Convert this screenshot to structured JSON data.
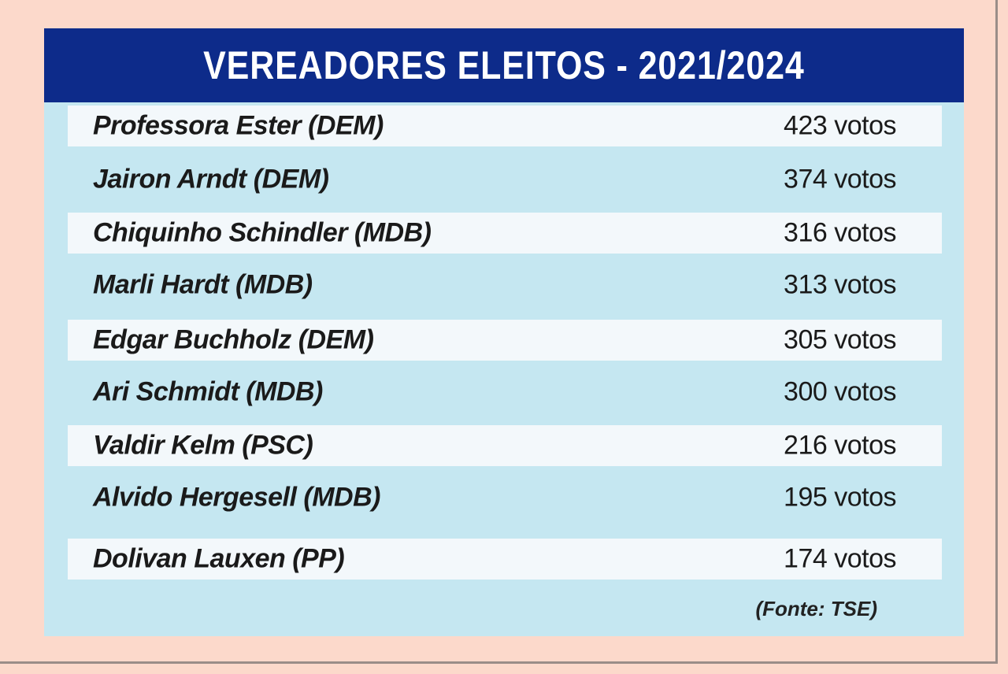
{
  "title": "VEREADORES ELEITOS - 2021/2024",
  "rows": [
    {
      "name": "Professora Ester (DEM)",
      "votes": "423 votos"
    },
    {
      "name": "Jairon Arndt (DEM)",
      "votes": "374 votos"
    },
    {
      "name": "Chiquinho Schindler (MDB)",
      "votes": "316 votos"
    },
    {
      "name": "Marli Hardt (MDB)",
      "votes": "313 votos"
    },
    {
      "name": "Edgar Buchholz (DEM)",
      "votes": "305 votos"
    },
    {
      "name": "Ari Schmidt (MDB)",
      "votes": "300 votos"
    },
    {
      "name": "Valdir Kelm (PSC)",
      "votes": "216 votos"
    },
    {
      "name": "Alvido Hergesell (MDB)",
      "votes": "195 votos"
    },
    {
      "name": "Dolivan Lauxen (PP)",
      "votes": "174 votos"
    }
  ],
  "source": "(Fonte: TSE)",
  "colors": {
    "page_background": "#fcd9cb",
    "card_background": "#c5e7f1",
    "title_background": "#0d2b8a",
    "title_text": "#ffffff",
    "row_highlight": "#f3f8fb"
  }
}
